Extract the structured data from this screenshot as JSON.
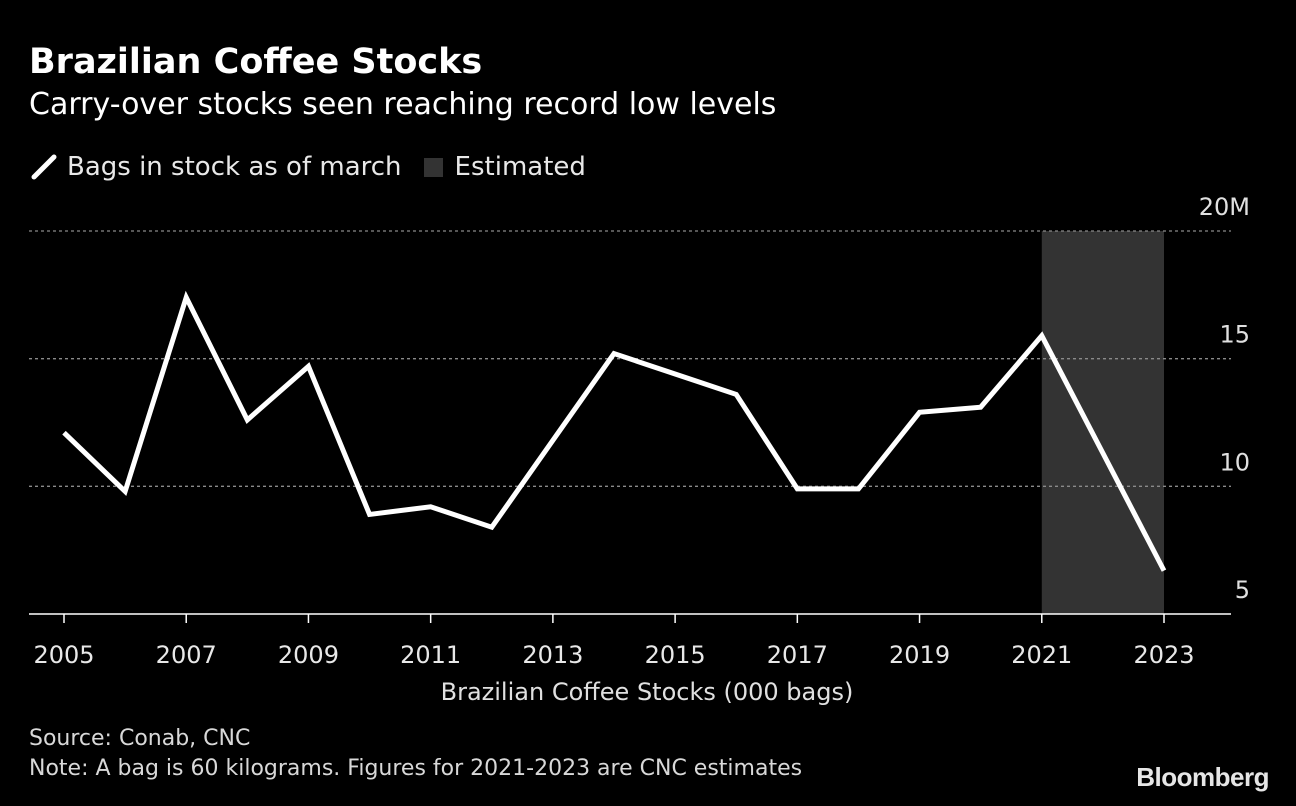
{
  "header": {
    "title": "Brazilian Coffee Stocks",
    "subtitle": "Carry-over stocks seen reaching record low levels"
  },
  "legend": {
    "line_label": "Bags in stock as of march",
    "shade_label": "Estimated"
  },
  "footer": {
    "source": "Source: Conab, CNC",
    "note": "Note: A bag is 60 kilograms. Figures for 2021-2023 are CNC estimates",
    "brand": "Bloomberg"
  },
  "colors": {
    "background": "#000000",
    "line": "#ffffff",
    "estimate_shade": "#333333",
    "grid": "#8a8a8a",
    "axis": "#ffffff",
    "text": "#ffffff"
  },
  "chart_data": {
    "type": "line",
    "title": "Brazilian Coffee Stocks",
    "subtitle": "Carry-over stocks seen reaching record low levels",
    "xlabel": "Brazilian Coffee Stocks (000 bags)",
    "ylabel": "",
    "x": [
      2005,
      2006,
      2007,
      2008,
      2009,
      2010,
      2011,
      2012,
      2013,
      2014,
      2015,
      2016,
      2017,
      2018,
      2019,
      2020,
      2021,
      2022,
      2023
    ],
    "series": [
      {
        "name": "Bags in stock as of march",
        "values": [
          12.1,
          9.8,
          17.4,
          12.6,
          14.7,
          8.9,
          9.2,
          8.4,
          11.8,
          15.2,
          14.4,
          13.6,
          9.9,
          9.9,
          12.9,
          13.1,
          15.9,
          11.3,
          6.7
        ]
      }
    ],
    "x_ticks": [
      "2005",
      "2007",
      "2009",
      "2011",
      "2013",
      "2015",
      "2017",
      "2019",
      "2021",
      "2023"
    ],
    "y_ticks": [
      {
        "value": 20,
        "label": "20M"
      },
      {
        "value": 15,
        "label": "15"
      },
      {
        "value": 10,
        "label": "10"
      },
      {
        "value": 5,
        "label": "5"
      }
    ],
    "xlim": [
      2005,
      2023
    ],
    "ylim": [
      5,
      20
    ],
    "estimate_range": [
      2021,
      2023
    ],
    "grid": true,
    "legend_position": "top-left"
  }
}
